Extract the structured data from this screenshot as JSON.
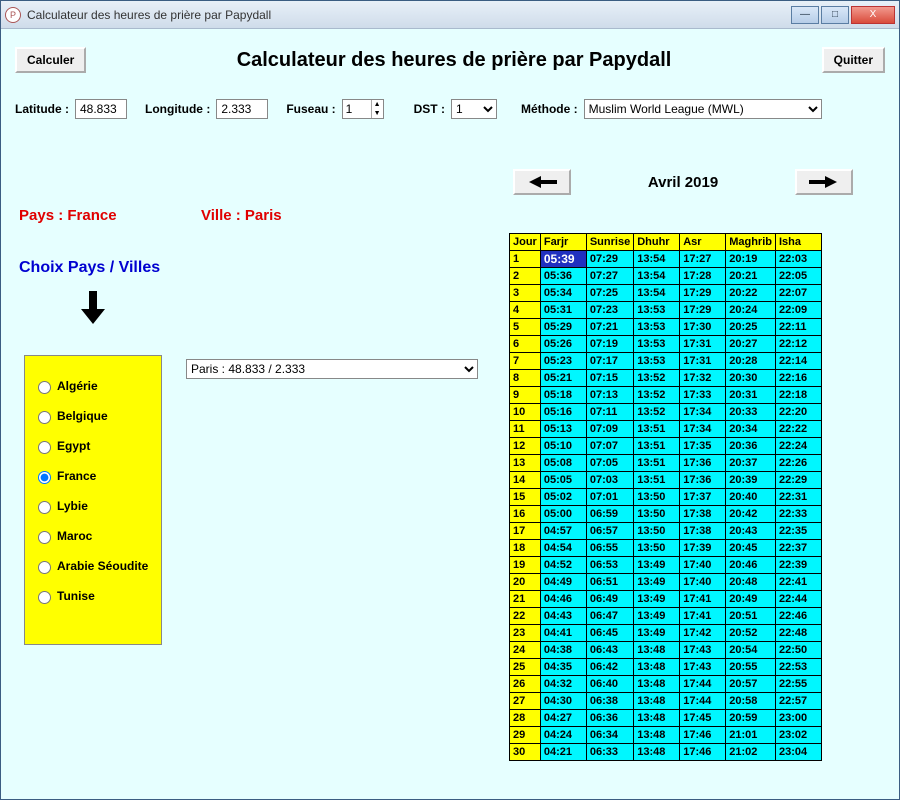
{
  "window": {
    "title": "Calculateur des heures de prière par Papydall"
  },
  "buttons": {
    "calc": "Calculer",
    "quit": "Quitter"
  },
  "appTitle": "Calculateur des heures de prière par Papydall",
  "labels": {
    "latitude": "Latitude :",
    "longitude": "Longitude :",
    "fuseau": "Fuseau :",
    "dst": "DST :",
    "methode": "Méthode :",
    "pays": "Pays : ",
    "ville": "Ville : ",
    "choix": "Choix Pays / Villes"
  },
  "inputs": {
    "latitude": "48.833",
    "longitude": "2.333",
    "fuseau": "1",
    "dst": "1",
    "methode": "Muslim World League (MWL)",
    "city": "Paris : 48.833 / 2.333"
  },
  "selectedCountry": "France",
  "selectedCity": "Paris",
  "month": "Avril  2019",
  "countries": [
    "Algérie",
    "Belgique",
    "Egypt",
    "France",
    "Lybie",
    "Maroc",
    "Arabie Séoudite",
    "Tunise"
  ],
  "selectedCountryIndex": 3,
  "tableHeaders": [
    "Jour",
    "Farjr",
    "Sunrise",
    "Dhuhr",
    "Asr",
    "Maghrib",
    "Isha"
  ],
  "rows": [
    [
      "1",
      "05:39",
      "07:29",
      "13:54",
      "17:27",
      "20:19",
      "22:03"
    ],
    [
      "2",
      "05:36",
      "07:27",
      "13:54",
      "17:28",
      "20:21",
      "22:05"
    ],
    [
      "3",
      "05:34",
      "07:25",
      "13:54",
      "17:29",
      "20:22",
      "22:07"
    ],
    [
      "4",
      "05:31",
      "07:23",
      "13:53",
      "17:29",
      "20:24",
      "22:09"
    ],
    [
      "5",
      "05:29",
      "07:21",
      "13:53",
      "17:30",
      "20:25",
      "22:11"
    ],
    [
      "6",
      "05:26",
      "07:19",
      "13:53",
      "17:31",
      "20:27",
      "22:12"
    ],
    [
      "7",
      "05:23",
      "07:17",
      "13:53",
      "17:31",
      "20:28",
      "22:14"
    ],
    [
      "8",
      "05:21",
      "07:15",
      "13:52",
      "17:32",
      "20:30",
      "22:16"
    ],
    [
      "9",
      "05:18",
      "07:13",
      "13:52",
      "17:33",
      "20:31",
      "22:18"
    ],
    [
      "10",
      "05:16",
      "07:11",
      "13:52",
      "17:34",
      "20:33",
      "22:20"
    ],
    [
      "11",
      "05:13",
      "07:09",
      "13:51",
      "17:34",
      "20:34",
      "22:22"
    ],
    [
      "12",
      "05:10",
      "07:07",
      "13:51",
      "17:35",
      "20:36",
      "22:24"
    ],
    [
      "13",
      "05:08",
      "07:05",
      "13:51",
      "17:36",
      "20:37",
      "22:26"
    ],
    [
      "14",
      "05:05",
      "07:03",
      "13:51",
      "17:36",
      "20:39",
      "22:29"
    ],
    [
      "15",
      "05:02",
      "07:01",
      "13:50",
      "17:37",
      "20:40",
      "22:31"
    ],
    [
      "16",
      "05:00",
      "06:59",
      "13:50",
      "17:38",
      "20:42",
      "22:33"
    ],
    [
      "17",
      "04:57",
      "06:57",
      "13:50",
      "17:38",
      "20:43",
      "22:35"
    ],
    [
      "18",
      "04:54",
      "06:55",
      "13:50",
      "17:39",
      "20:45",
      "22:37"
    ],
    [
      "19",
      "04:52",
      "06:53",
      "13:49",
      "17:40",
      "20:46",
      "22:39"
    ],
    [
      "20",
      "04:49",
      "06:51",
      "13:49",
      "17:40",
      "20:48",
      "22:41"
    ],
    [
      "21",
      "04:46",
      "06:49",
      "13:49",
      "17:41",
      "20:49",
      "22:44"
    ],
    [
      "22",
      "04:43",
      "06:47",
      "13:49",
      "17:41",
      "20:51",
      "22:46"
    ],
    [
      "23",
      "04:41",
      "06:45",
      "13:49",
      "17:42",
      "20:52",
      "22:48"
    ],
    [
      "24",
      "04:38",
      "06:43",
      "13:48",
      "17:43",
      "20:54",
      "22:50"
    ],
    [
      "25",
      "04:35",
      "06:42",
      "13:48",
      "17:43",
      "20:55",
      "22:53"
    ],
    [
      "26",
      "04:32",
      "06:40",
      "13:48",
      "17:44",
      "20:57",
      "22:55"
    ],
    [
      "27",
      "04:30",
      "06:38",
      "13:48",
      "17:44",
      "20:58",
      "22:57"
    ],
    [
      "28",
      "04:27",
      "06:36",
      "13:48",
      "17:45",
      "20:59",
      "23:00"
    ],
    [
      "29",
      "04:24",
      "06:34",
      "13:48",
      "17:46",
      "21:01",
      "23:02"
    ],
    [
      "30",
      "04:21",
      "06:33",
      "13:48",
      "17:46",
      "21:02",
      "23:04"
    ]
  ],
  "selectedCell": {
    "row": 0,
    "col": 1
  }
}
